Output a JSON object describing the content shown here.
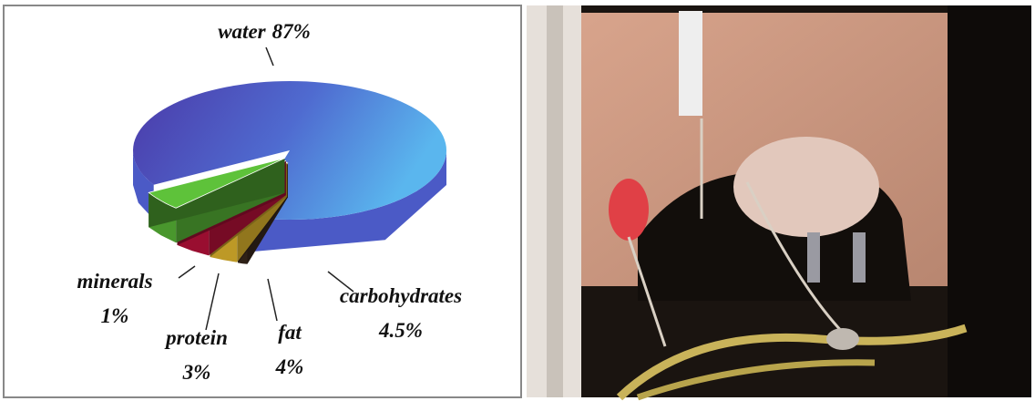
{
  "chart_data": {
    "type": "pie",
    "categories": [
      "water",
      "minerals",
      "protein",
      "fat",
      "carbohydrates"
    ],
    "values": [
      87,
      1,
      3,
      4,
      4.5
    ],
    "value_labels": [
      "87%",
      "1%",
      "3%",
      "4%",
      "4.5%"
    ],
    "colors": [
      "#4f5fd0",
      "#3b2a1e",
      "#f2c431",
      "#c4123e",
      "#5ec23a"
    ]
  }
}
